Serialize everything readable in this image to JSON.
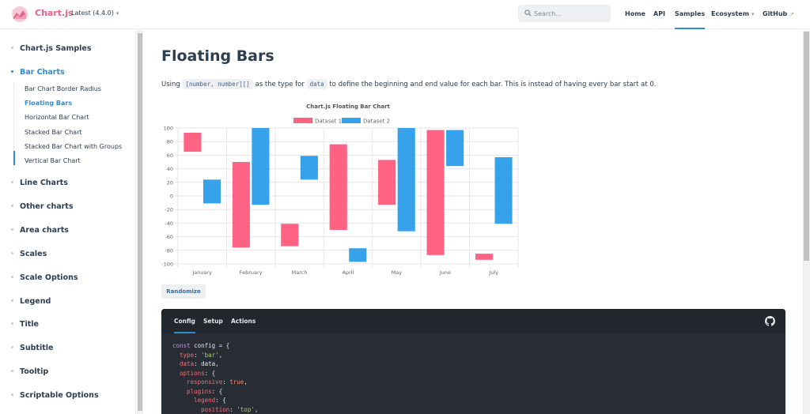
{
  "nav": {
    "brand": "Chart.js",
    "version": "Latest (4.4.0)",
    "search_placeholder": "Search...",
    "items": [
      "Home",
      "API",
      "Samples",
      "Ecosystem",
      "GitHub"
    ]
  },
  "sidebar": {
    "sections": [
      "Chart.js Samples",
      "Bar Charts",
      "Line Charts",
      "Other charts",
      "Area charts",
      "Scales",
      "Scale Options",
      "Legend",
      "Title",
      "Subtitle",
      "Tooltip",
      "Scriptable Options"
    ],
    "bar_chart_items": [
      "Bar Chart Border Radius",
      "Floating Bars",
      "Horizontal Bar Chart",
      "Stacked Bar Chart",
      "Stacked Bar Chart with Groups",
      "Vertical Bar Chart"
    ]
  },
  "main": {
    "title": "Floating Bars",
    "desc_before": "Using",
    "desc_code1": "[number, number][]",
    "desc_mid": "as the type for",
    "desc_code2": "data",
    "desc_after": "to define the beginning and end value for each bar. This is instead of having every bar start at 0.",
    "randomize_label": "Randomize"
  },
  "chart_data": {
    "type": "bar",
    "title": "Chart.js Floating Bar Chart",
    "categories": [
      "January",
      "February",
      "March",
      "April",
      "May",
      "June",
      "July"
    ],
    "ylim": [
      -100,
      100
    ],
    "yticks": [
      "100",
      "80",
      "60",
      "40",
      "20",
      "0",
      "-20",
      "-40",
      "-60",
      "-80",
      "-100"
    ],
    "legend_position": "top",
    "grid": true,
    "series": [
      {
        "name": "Dataset 1",
        "color": "#ff6384",
        "values": [
          [
            65,
            93
          ],
          [
            -76,
            50
          ],
          [
            -74,
            -41
          ],
          [
            -50,
            76
          ],
          [
            -13,
            53
          ],
          [
            -87,
            97
          ],
          [
            -94,
            -85
          ]
        ]
      },
      {
        "name": "Dataset 2",
        "color": "#36a2eb",
        "values": [
          [
            -11,
            24
          ],
          [
            -13,
            100
          ],
          [
            24,
            59
          ],
          [
            -97,
            -77
          ],
          [
            -52,
            100
          ],
          [
            44,
            97
          ],
          [
            -41,
            57
          ]
        ]
      }
    ]
  },
  "code": {
    "tabs": [
      "Config",
      "Setup",
      "Actions"
    ],
    "l1_kw": "const",
    "l1_rest": " config = {",
    "l2_prop": "  type",
    "l2_str": "'bar'",
    "l3_prop": "  data",
    "l3_rest": ": data,",
    "l4_prop": "  options",
    "l4_rest": ": {",
    "l5_prop": "    responsive",
    "l5_bool": "true",
    "l6_prop": "    plugins",
    "l6_rest": ": {",
    "l7_prop": "      legend",
    "l7_rest": ": {",
    "l8_prop": "        position",
    "l8_str": "'top'"
  }
}
